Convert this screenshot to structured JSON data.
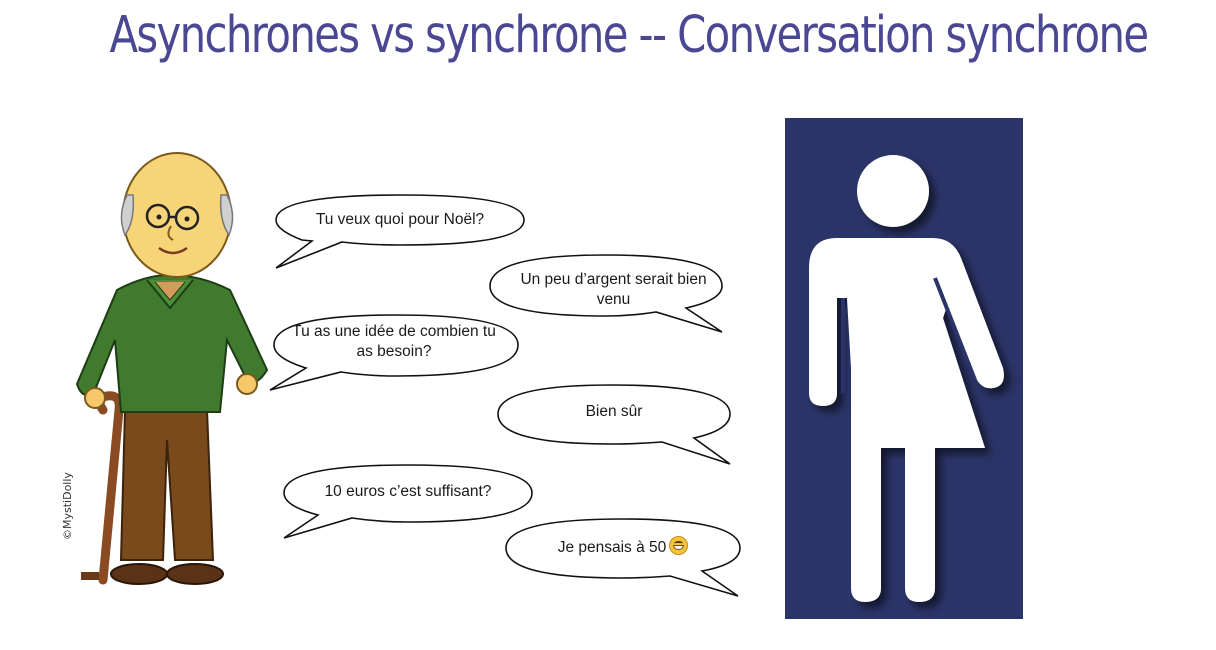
{
  "title": {
    "text": "Asynchrones vs synchrone -- Conversation synchrone",
    "color": "#4a4793"
  },
  "illustration": {
    "signature": "©MystiDolly"
  },
  "bubbles": [
    {
      "text": "Tu veux quoi pour Noël?",
      "side": "left"
    },
    {
      "text": "Un peu d’argent serait bien venu",
      "side": "right"
    },
    {
      "text": "Tu as une idée de combien tu as besoin?",
      "side": "left"
    },
    {
      "text": "Bien sûr",
      "side": "right"
    },
    {
      "text": "10 euros c’est suffisant?",
      "side": "left"
    },
    {
      "text": "Je pensais à 50",
      "side": "right",
      "emoji": "grinning-face-icon"
    }
  ],
  "sign": {
    "background": "#2b3468",
    "figure_color": "#ffffff"
  }
}
